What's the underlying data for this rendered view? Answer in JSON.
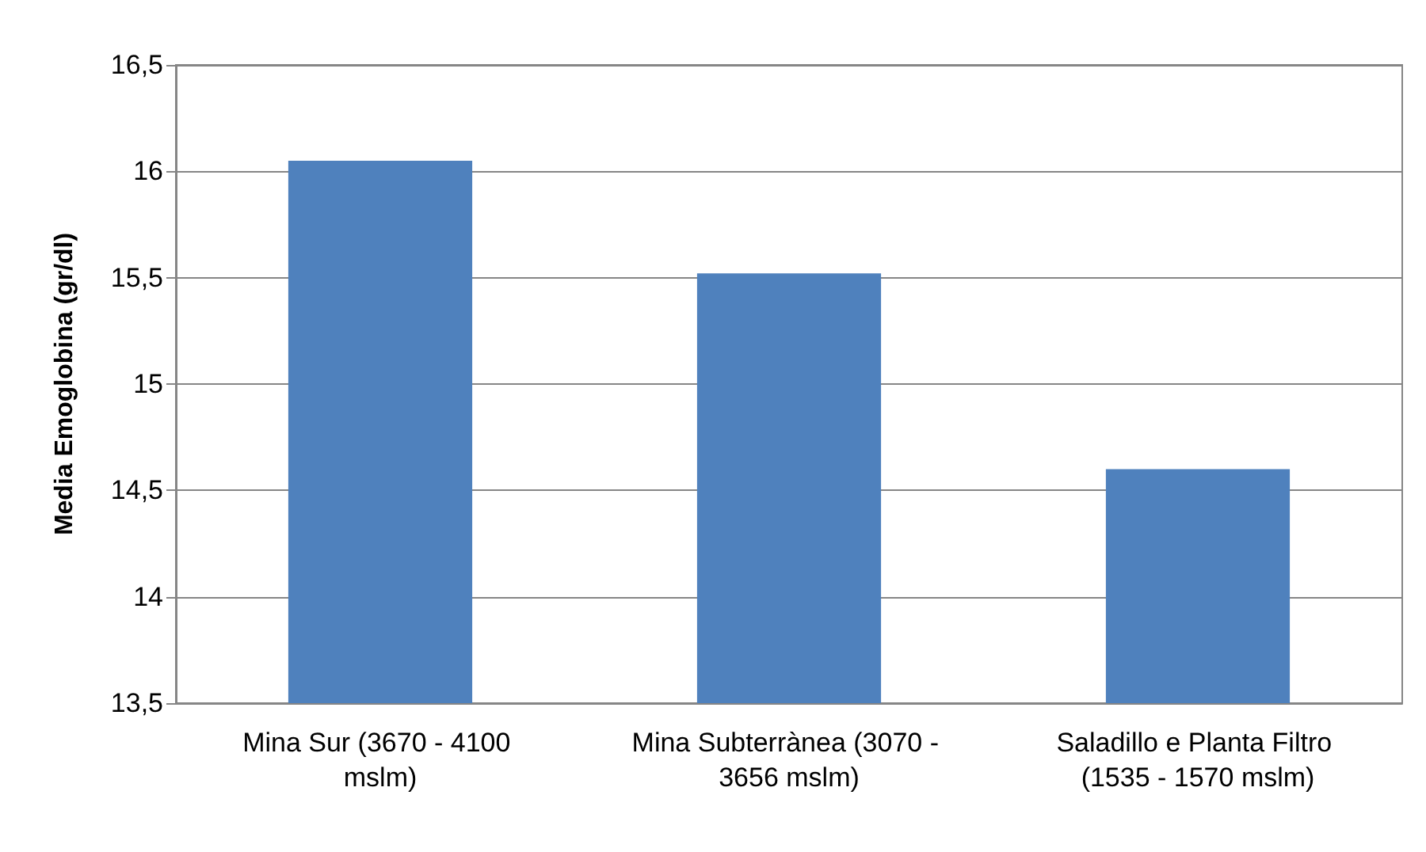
{
  "chart_data": {
    "type": "bar",
    "ylabel": "Media Emoglobina (gr/dl)",
    "categories": [
      "Mina Sur (3670 - 4100 mslm)",
      "Mina Subterrànea (3070 - 3656 mslm)",
      "Saladillo e Planta Filtro (1535 - 1570 mslm)"
    ],
    "values": [
      16.05,
      15.52,
      14.6
    ],
    "color": "#4f81bd",
    "ylim": [
      13.5,
      16.5
    ],
    "yticks": [
      {
        "value": 13.5,
        "label": "13,5"
      },
      14,
      {
        "value": 14.5,
        "label": "14,5"
      },
      15,
      {
        "value": 15.5,
        "label": "15,5"
      },
      16,
      {
        "value": 16.5,
        "label": "16,5"
      }
    ],
    "grid": "y"
  }
}
